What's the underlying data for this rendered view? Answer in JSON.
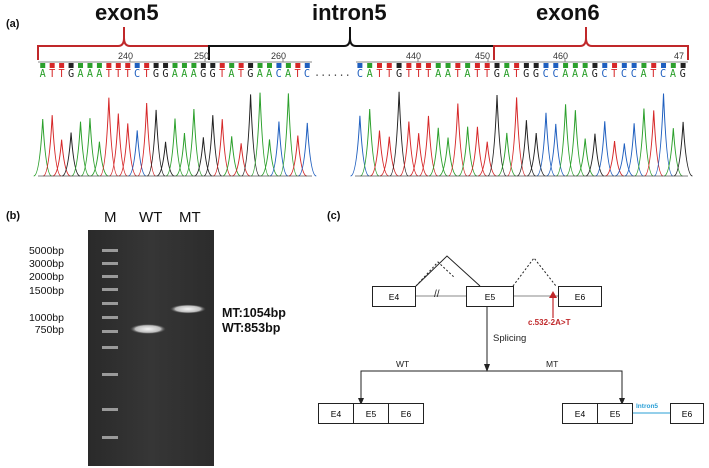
{
  "panel_a": {
    "tag": "(a)",
    "region_exon5": "exon5",
    "region_intron5": "intron5",
    "region_exon6": "exon6",
    "numbers": [
      "240",
      "250",
      "260",
      "440",
      "450",
      "460",
      "47"
    ],
    "seq_left": "ATTGAAATTTCTGGAAAGGTATGAACATC",
    "seq_dots": "......",
    "seq_right": "CATTGTTTAATATTGATGGCCAAAGCTCCATCAG"
  },
  "panel_b": {
    "tag": "(b)",
    "lanes": [
      "M",
      "WT",
      "MT"
    ],
    "ladder": [
      "5000bp",
      "3000bp",
      "2000bp",
      "1500bp",
      "1000bp",
      "750bp"
    ],
    "mt_size": "MT:1054bp",
    "wt_size": "WT:853bp"
  },
  "panel_c": {
    "tag": "(c)",
    "top_boxes": [
      "E4",
      "E5",
      "E6"
    ],
    "break_mark": "//",
    "mutation": "c.532-2A>T",
    "splicing": "Splicing",
    "wt_label": "WT",
    "mt_label": "MT",
    "wt_boxes": [
      "E4",
      "E5",
      "E6"
    ],
    "mt_boxes": [
      "E4",
      "E5",
      "E6"
    ],
    "intron_label": "Intron5",
    "colors": {
      "mutation": "#c0282a",
      "intron": "#2a9fd6",
      "bracket_exon": "#c0282a",
      "bracket_intron": "#111111"
    }
  }
}
